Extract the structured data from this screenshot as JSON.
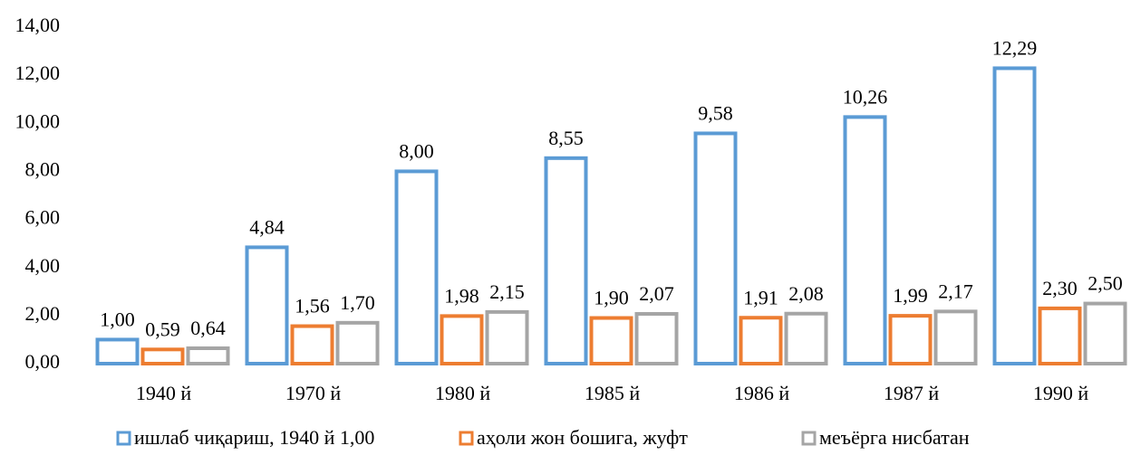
{
  "chart_data": {
    "type": "bar",
    "categories": [
      "1940 й",
      "1970 й",
      "1980 й",
      "1985 й",
      "1986 й",
      "1987 й",
      "1990 й"
    ],
    "series": [
      {
        "name": "ишлаб чиқариш, 1940 й 1,00",
        "color": "#5b9bd5",
        "values": [
          1.0,
          4.84,
          8.0,
          8.55,
          9.58,
          10.26,
          12.29
        ],
        "value_labels": [
          "1,00",
          "4,84",
          "8,00",
          "8,55",
          "9,58",
          "10,26",
          "12,29"
        ]
      },
      {
        "name": "аҳоли жон бошига, жуфт",
        "color": "#ed7d31",
        "values": [
          0.59,
          1.56,
          1.98,
          1.9,
          1.91,
          1.99,
          2.3
        ],
        "value_labels": [
          "0,59",
          "1,56",
          "1,98",
          "1,90",
          "1,91",
          "1,99",
          "2,30"
        ]
      },
      {
        "name": "меъёрга нисбатан",
        "color": "#a5a5a5",
        "values": [
          0.64,
          1.7,
          2.15,
          2.07,
          2.08,
          2.17,
          2.5
        ],
        "value_labels": [
          "0,64",
          "1,70",
          "2,15",
          "2,07",
          "2,08",
          "2,17",
          "2,50"
        ]
      }
    ],
    "ylim": [
      0,
      14
    ],
    "yticks": [
      {
        "value": 0,
        "label": "0,00"
      },
      {
        "value": 2,
        "label": "2,00"
      },
      {
        "value": 4,
        "label": "4,00"
      },
      {
        "value": 6,
        "label": "6,00"
      },
      {
        "value": 8,
        "label": "8,00"
      },
      {
        "value": 10,
        "label": "10,00"
      },
      {
        "value": 12,
        "label": "12,00"
      },
      {
        "value": 14,
        "label": "14,00"
      }
    ],
    "grid": false,
    "legend": "bottom"
  }
}
